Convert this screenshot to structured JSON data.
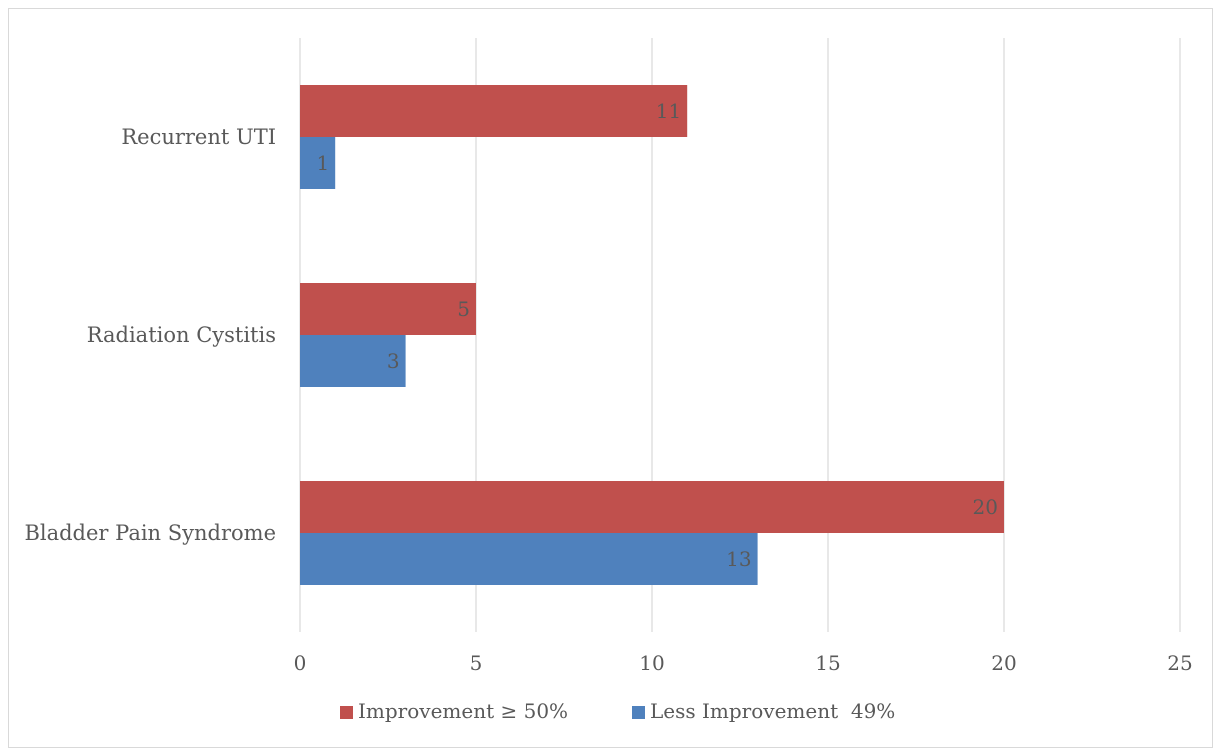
{
  "chart_data": {
    "type": "bar",
    "orientation": "horizontal",
    "title": "",
    "xlabel": "",
    "ylabel": "",
    "categories": [
      "Recurrent UTI",
      "Radiation Cystitis",
      "Bladder Pain Syndrome"
    ],
    "series": [
      {
        "name": "Improvement ≥ 50%",
        "color": "#c0504d",
        "values": [
          11,
          5,
          20
        ]
      },
      {
        "name": "Less Improvement  49%",
        "color": "#4f81bd",
        "values": [
          1,
          3,
          13
        ]
      }
    ],
    "x_ticks": [
      "0",
      "5",
      "10",
      "15",
      "20",
      "25"
    ],
    "xlim": [
      0,
      25
    ],
    "grid": true,
    "gridline_color": "#d9d9d9",
    "data_labels": true,
    "legend_position": "bottom"
  }
}
